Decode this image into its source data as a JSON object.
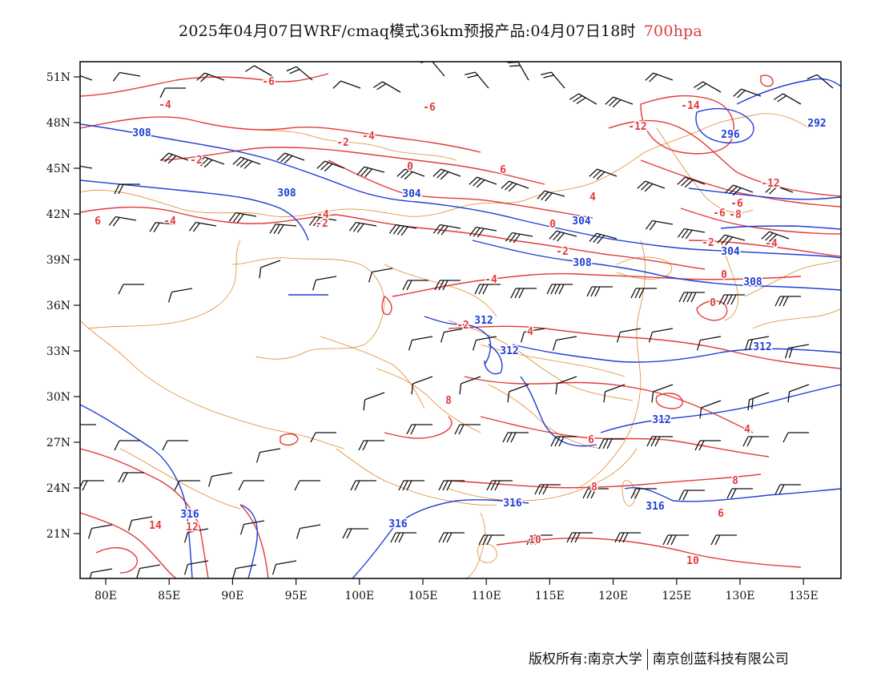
{
  "title": {
    "text": "2025年04月07日WRF/cmaq模式36km预报产品:04月07日18时",
    "level": "700hpa"
  },
  "axes": {
    "lat_labels": [
      "51N",
      "48N",
      "45N",
      "42N",
      "39N",
      "36N",
      "33N",
      "30N",
      "27N",
      "24N",
      "21N"
    ],
    "lon_labels": [
      "80E",
      "85E",
      "90E",
      "95E",
      "100E",
      "105E",
      "110E",
      "115E",
      "120E",
      "125E",
      "130E",
      "135E"
    ]
  },
  "colors": {
    "temperature": "#e23b3b",
    "height": "#1f3fd6",
    "boundary": "#e08a2a",
    "wind": "#111111"
  },
  "contour_labels": {
    "temperature": [
      "-6",
      "-4",
      "-6",
      "-4",
      "-2",
      "-4",
      "-2",
      "0",
      "-2",
      "-14",
      "-12",
      "-12",
      "-6",
      "-8",
      "-6",
      "-4",
      "-2",
      "-4",
      "0",
      "-2",
      "6",
      "-4",
      "0",
      "4",
      "0",
      "-2",
      "4",
      "6",
      "8",
      "6",
      "6",
      "8",
      "8",
      "4",
      "12",
      "14",
      "10",
      "10"
    ],
    "height": [
      "308",
      "308",
      "304",
      "304",
      "308",
      "296",
      "292",
      "304",
      "308",
      "312",
      "312",
      "312",
      "312",
      "316",
      "316",
      "316",
      "316"
    ]
  },
  "copyright": {
    "left": "版权所有:南京大学",
    "right": "南京创蓝科技有限公司"
  }
}
